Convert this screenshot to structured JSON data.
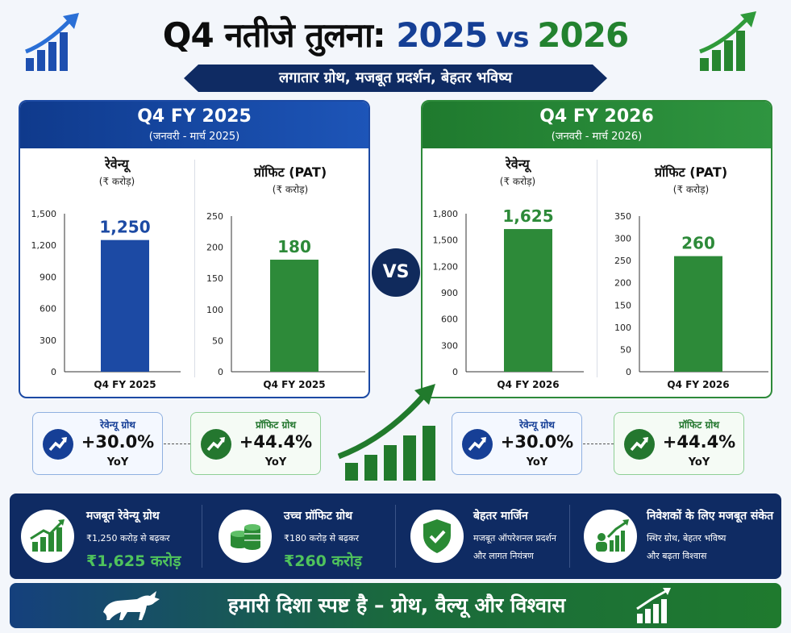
{
  "header": {
    "title_part1": "Q4 नतीजे तुलना: ",
    "title_year1": "2025",
    "title_vs": " vs ",
    "title_year2": "2026",
    "subtitle": "लगातार ग्रोथ, मजबूत प्रदर्शन, बेहतर भविष्य"
  },
  "colors": {
    "blue": "#1c4aa4",
    "green": "#2d8a39",
    "navy": "#0f2b63",
    "accent_green": "#4fc35c"
  },
  "vs_label": "VS",
  "panels": [
    {
      "title": "Q4 FY 2025",
      "period": "(जनवरी - मार्च 2025)",
      "revenue": {
        "title": "रेवेन्यू",
        "unit": "(₹ करोड़)"
      },
      "profit": {
        "title": "प्रॉफिट (PAT)",
        "unit": "(₹ करोड़)"
      }
    },
    {
      "title": "Q4 FY 2026",
      "period": "(जनवरी - मार्च 2026)",
      "revenue": {
        "title": "रेवेन्यू",
        "unit": "(₹ करोड़)"
      },
      "profit": {
        "title": "प्रॉफिट (PAT)",
        "unit": "(₹ करोड़)"
      }
    }
  ],
  "chart_data": [
    {
      "type": "bar",
      "title": "रेवेन्यू",
      "ylabel": "(₹ करोड़)",
      "categories": [
        "Q4 FY 2025"
      ],
      "values": [
        1250
      ],
      "value_labels": [
        "1,250"
      ],
      "ylim": [
        0,
        1500
      ],
      "yticks": [
        0,
        300,
        600,
        900,
        1200,
        1500
      ],
      "ytick_labels": [
        "0",
        "300",
        "600",
        "900",
        "1,200",
        "1,500"
      ],
      "color": "#1c4aa4"
    },
    {
      "type": "bar",
      "title": "प्रॉफिट (PAT)",
      "ylabel": "(₹ करोड़)",
      "categories": [
        "Q4 FY 2025"
      ],
      "values": [
        180
      ],
      "value_labels": [
        "180"
      ],
      "ylim": [
        0,
        250
      ],
      "yticks": [
        0,
        50,
        100,
        150,
        200,
        250
      ],
      "ytick_labels": [
        "0",
        "50",
        "100",
        "150",
        "200",
        "250"
      ],
      "color": "#2d8a39"
    },
    {
      "type": "bar",
      "title": "रेवेन्यू",
      "ylabel": "(₹ करोड़)",
      "categories": [
        "Q4 FY 2026"
      ],
      "values": [
        1625
      ],
      "value_labels": [
        "1,625"
      ],
      "ylim": [
        0,
        1800
      ],
      "yticks": [
        0,
        300,
        600,
        900,
        1200,
        1500,
        1800
      ],
      "ytick_labels": [
        "0",
        "300",
        "600",
        "900",
        "1,200",
        "1,500",
        "1,800"
      ],
      "color": "#2d8a39"
    },
    {
      "type": "bar",
      "title": "प्रॉफिट (PAT)",
      "ylabel": "(₹ करोड़)",
      "categories": [
        "Q4 FY 2026"
      ],
      "values": [
        260
      ],
      "value_labels": [
        "260"
      ],
      "ylim": [
        0,
        350
      ],
      "yticks": [
        0,
        50,
        100,
        150,
        200,
        250,
        300,
        350
      ],
      "ytick_labels": [
        "0",
        "50",
        "100",
        "150",
        "200",
        "250",
        "300",
        "350"
      ],
      "color": "#2d8a39"
    }
  ],
  "growth": [
    {
      "label": "रेवेन्यू ग्रोथ",
      "value": "+30.0%",
      "suffix": "YoY"
    },
    {
      "label": "प्रॉफिट ग्रोथ",
      "value": "+44.4%",
      "suffix": "YoY"
    },
    {
      "label": "रेवेन्यू ग्रोथ",
      "value": "+30.0%",
      "suffix": "YoY"
    },
    {
      "label": "प्रॉफिट ग्रोथ",
      "value": "+44.4%",
      "suffix": "YoY"
    }
  ],
  "features": [
    {
      "title": "मजबूत रेवेन्यू ग्रोथ",
      "line1": "₹1,250 करोड़ से बढ़कर",
      "value": "₹1,625 करोड़",
      "icon": "bar-growth-icon"
    },
    {
      "title": "उच्च प्रॉफिट ग्रोथ",
      "line1": "₹180 करोड़ से बढ़कर",
      "value": "₹260 करोड़",
      "icon": "coins-icon"
    },
    {
      "title": "बेहतर मार्जिन",
      "line1": "मजबूत ऑपरेशनल प्रदर्शन",
      "line2": "और लागत नियंत्रण",
      "icon": "shield-check-icon"
    },
    {
      "title": "निवेशकों के लिए मजबूत संकेत",
      "line1": "स्थिर ग्रोथ, बेहतर भविष्य",
      "line2": "और बढ़ता विश्वास",
      "icon": "investors-icon"
    }
  ],
  "footer": {
    "text": "हमारी दिशा स्पष्ट है – ग्रोथ, वैल्यू और विश्वास"
  }
}
